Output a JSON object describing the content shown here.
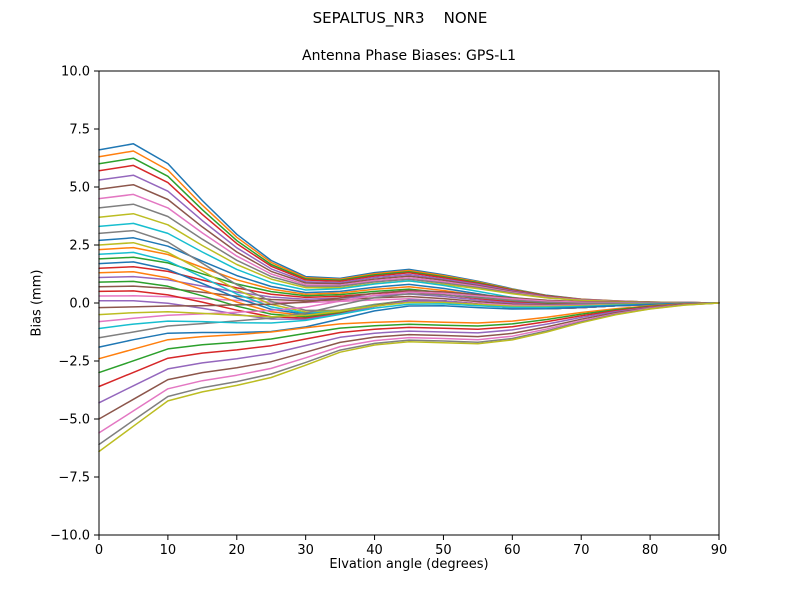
{
  "figure": {
    "suptitle": "SEPALTUS_NR3    NONE"
  },
  "chart_data": {
    "type": "line",
    "suptitle": "SEPALTUS_NR3    NONE",
    "title": "Antenna Phase Biases: GPS-L1",
    "xlabel": "Elvation angle (degrees)",
    "ylabel": "Bias (mm)",
    "xlim": [
      0,
      90
    ],
    "ylim": [
      -10,
      10
    ],
    "xticks": [
      0,
      10,
      20,
      30,
      40,
      50,
      60,
      70,
      80,
      90
    ],
    "yticks": [
      -10,
      -7.5,
      -5,
      -2.5,
      0,
      2.5,
      5,
      7.5,
      10
    ],
    "ytick_labels": [
      "−10.0",
      "−7.5",
      "−5.0",
      "−2.5",
      "0.0",
      "2.5",
      "5.0",
      "7.5",
      "10.0"
    ],
    "grid": false,
    "legend": "none",
    "line_colors": [
      "#1f77b4",
      "#ff7f0e",
      "#2ca02c",
      "#d62728",
      "#9467bd",
      "#8c564b",
      "#e377c2",
      "#7f7f7f",
      "#bcbd22",
      "#17becf"
    ],
    "x": [
      0,
      5,
      10,
      15,
      20,
      25,
      30,
      35,
      40,
      45,
      50,
      55,
      60,
      65,
      70,
      75,
      80,
      85,
      90
    ],
    "series": [
      [
        6.6,
        6.86,
        6.01,
        4.42,
        2.96,
        1.83,
        1.14,
        1.06,
        1.31,
        1.45,
        1.22,
        0.94,
        0.61,
        0.33,
        0.17,
        0.09,
        0.04,
        0.02,
        0.0
      ],
      [
        6.3,
        6.55,
        5.73,
        4.22,
        2.83,
        1.75,
        1.09,
        1.02,
        1.26,
        1.4,
        1.18,
        0.91,
        0.59,
        0.32,
        0.16,
        0.09,
        0.04,
        0.02,
        0.0
      ],
      [
        6.0,
        6.24,
        5.46,
        4.02,
        2.69,
        1.66,
        1.04,
        0.98,
        1.21,
        1.35,
        1.13,
        0.88,
        0.57,
        0.31,
        0.15,
        0.08,
        0.04,
        0.02,
        0.0
      ],
      [
        5.7,
        5.93,
        5.19,
        3.82,
        2.56,
        1.58,
        0.99,
        0.94,
        1.16,
        1.3,
        1.09,
        0.84,
        0.55,
        0.3,
        0.15,
        0.08,
        0.04,
        0.02,
        0.0
      ],
      [
        5.3,
        5.51,
        4.82,
        3.55,
        2.38,
        1.47,
        0.92,
        0.88,
        1.1,
        1.23,
        1.03,
        0.8,
        0.52,
        0.28,
        0.14,
        0.08,
        0.04,
        0.02,
        0.0
      ],
      [
        4.9,
        5.1,
        4.46,
        3.28,
        2.2,
        1.36,
        0.86,
        0.83,
        1.03,
        1.16,
        0.98,
        0.75,
        0.49,
        0.27,
        0.13,
        0.07,
        0.04,
        0.02,
        0.0
      ],
      [
        4.5,
        4.68,
        4.1,
        3.02,
        2.02,
        1.25,
        0.79,
        0.77,
        0.97,
        1.09,
        0.92,
        0.71,
        0.46,
        0.25,
        0.13,
        0.07,
        0.03,
        0.02,
        0.0
      ],
      [
        4.1,
        4.26,
        3.73,
        2.75,
        1.84,
        1.14,
        0.73,
        0.72,
        0.91,
        1.02,
        0.86,
        0.67,
        0.43,
        0.23,
        0.12,
        0.06,
        0.03,
        0.02,
        0.0
      ],
      [
        3.7,
        3.85,
        3.37,
        2.48,
        1.66,
        1.03,
        0.66,
        0.66,
        0.84,
        0.95,
        0.8,
        0.62,
        0.4,
        0.22,
        0.11,
        0.06,
        0.03,
        0.01,
        0.0
      ],
      [
        3.3,
        3.43,
        3.0,
        2.2,
        1.45,
        0.88,
        0.56,
        0.61,
        0.82,
        0.96,
        0.76,
        0.5,
        0.24,
        0.06,
        -0.01,
        -0.01,
        -0.01,
        0.0,
        0.0
      ],
      [
        2.7,
        2.81,
        2.45,
        1.8,
        1.18,
        0.71,
        0.45,
        0.5,
        0.68,
        0.8,
        0.63,
        0.4,
        0.17,
        0.02,
        -0.03,
        -0.02,
        -0.01,
        0.0,
        0.0
      ],
      [
        2.3,
        2.39,
        2.09,
        1.53,
        1.0,
        0.6,
        0.38,
        0.43,
        0.59,
        0.7,
        0.54,
        0.33,
        0.13,
        0.0,
        -0.04,
        -0.03,
        -0.02,
        -0.01,
        0.0
      ],
      [
        1.9,
        1.97,
        1.73,
        1.26,
        0.82,
        0.49,
        0.31,
        0.36,
        0.5,
        0.6,
        0.45,
        0.26,
        0.09,
        -0.02,
        -0.05,
        -0.03,
        -0.02,
        -0.01,
        0.0
      ],
      [
        1.5,
        1.56,
        1.36,
        0.99,
        0.65,
        0.38,
        0.24,
        0.29,
        0.41,
        0.49,
        0.36,
        0.19,
        0.04,
        -0.05,
        -0.06,
        -0.04,
        -0.02,
        -0.01,
        0.0
      ],
      [
        1.1,
        1.14,
        1.0,
        0.73,
        0.47,
        0.26,
        0.16,
        0.21,
        0.31,
        0.39,
        0.28,
        0.13,
        0.0,
        -0.07,
        -0.08,
        -0.05,
        -0.02,
        -0.01,
        0.0
      ],
      [
        0.7,
        0.73,
        0.63,
        0.46,
        0.29,
        0.15,
        0.09,
        0.14,
        0.22,
        0.28,
        0.19,
        0.06,
        -0.05,
        -0.1,
        -0.09,
        -0.05,
        -0.03,
        -0.01,
        0.0
      ],
      [
        0.3,
        0.31,
        0.27,
        0.19,
        0.11,
        0.04,
        0.02,
        0.07,
        0.13,
        0.18,
        0.1,
        -0.01,
        -0.09,
        -0.12,
        -0.1,
        -0.06,
        -0.03,
        -0.01,
        0.0
      ],
      [
        3.0,
        3.12,
        2.63,
        1.71,
        0.79,
        0.07,
        -0.32,
        -0.31,
        -0.06,
        0.12,
        0.09,
        -0.05,
        -0.21,
        -0.25,
        -0.2,
        -0.12,
        -0.07,
        -0.02,
        0.0
      ],
      [
        2.5,
        2.6,
        2.18,
        1.38,
        0.57,
        -0.06,
        -0.39,
        -0.34,
        -0.08,
        0.11,
        0.09,
        -0.05,
        -0.21,
        -0.25,
        -0.2,
        -0.12,
        -0.07,
        -0.02,
        0.0
      ],
      [
        2.1,
        2.18,
        1.81,
        1.11,
        0.39,
        -0.17,
        -0.44,
        -0.36,
        -0.09,
        0.11,
        0.09,
        -0.05,
        -0.21,
        -0.25,
        -0.2,
        -0.12,
        -0.07,
        -0.02,
        0.0
      ],
      [
        1.7,
        1.77,
        1.45,
        0.84,
        0.22,
        -0.27,
        -0.49,
        -0.39,
        -0.1,
        0.11,
        0.09,
        -0.05,
        -0.21,
        -0.25,
        -0.2,
        -0.12,
        -0.07,
        -0.02,
        0.0
      ],
      [
        1.3,
        1.35,
        1.08,
        0.57,
        0.04,
        -0.38,
        -0.54,
        -0.41,
        -0.11,
        0.1,
        0.09,
        -0.05,
        -0.21,
        -0.25,
        -0.2,
        -0.12,
        -0.07,
        -0.02,
        0.0
      ],
      [
        0.9,
        0.93,
        0.72,
        0.31,
        -0.14,
        -0.48,
        -0.6,
        -0.43,
        -0.13,
        0.1,
        0.09,
        -0.05,
        -0.21,
        -0.25,
        -0.2,
        -0.12,
        -0.07,
        -0.02,
        0.0
      ],
      [
        0.5,
        0.52,
        0.35,
        0.04,
        -0.31,
        -0.59,
        -0.65,
        -0.46,
        -0.14,
        0.09,
        0.09,
        -0.05,
        -0.21,
        -0.25,
        -0.2,
        -0.12,
        -0.07,
        -0.02,
        0.0
      ],
      [
        0.1,
        0.1,
        -0.01,
        -0.23,
        -0.49,
        -0.69,
        -0.7,
        -0.48,
        -0.15,
        0.09,
        0.09,
        -0.05,
        -0.21,
        -0.25,
        -0.2,
        -0.12,
        -0.07,
        -0.02,
        0.0
      ],
      [
        -0.2,
        -0.17,
        -0.13,
        -0.12,
        -0.08,
        -0.05,
        0.04,
        0.22,
        0.42,
        0.54,
        0.48,
        0.36,
        0.23,
        0.12,
        0.06,
        0.03,
        0.02,
        0.01,
        0.0
      ],
      [
        -0.8,
        -0.66,
        -0.53,
        -0.47,
        -0.4,
        -0.32,
        -0.18,
        0.08,
        0.33,
        0.47,
        0.42,
        0.3,
        0.18,
        0.08,
        0.03,
        0.01,
        0.01,
        0.0,
        0.0
      ],
      [
        -1.5,
        -1.25,
        -0.99,
        -0.89,
        -0.77,
        -0.65,
        -0.43,
        -0.09,
        0.23,
        0.4,
        0.35,
        0.23,
        0.11,
        0.03,
        -0.01,
        -0.01,
        0.0,
        0.0,
        0.0
      ],
      [
        -0.5,
        -0.42,
        -0.38,
        -0.45,
        -0.53,
        -0.59,
        -0.53,
        -0.35,
        -0.13,
        0.02,
        0.02,
        -0.06,
        -0.14,
        -0.15,
        -0.12,
        -0.07,
        -0.04,
        -0.01,
        0.0
      ],
      [
        -1.1,
        -0.91,
        -0.78,
        -0.8,
        -0.85,
        -0.86,
        -0.75,
        -0.49,
        -0.22,
        -0.05,
        -0.04,
        -0.12,
        -0.19,
        -0.19,
        -0.15,
        -0.09,
        -0.05,
        -0.02,
        0.0
      ],
      [
        -1.9,
        -1.58,
        -1.3,
        -1.27,
        -1.27,
        -1.23,
        -1.03,
        -0.69,
        -0.34,
        -0.13,
        -0.12,
        -0.2,
        -0.26,
        -0.25,
        -0.19,
        -0.12,
        -0.06,
        -0.02,
        0.0
      ],
      [
        -2.4,
        -1.99,
        -1.58,
        -1.45,
        -1.36,
        -1.25,
        -1.07,
        -0.9,
        -0.83,
        -0.79,
        -0.83,
        -0.86,
        -0.78,
        -0.61,
        -0.41,
        -0.25,
        -0.12,
        -0.04,
        0.0
      ],
      [
        -3.0,
        -2.49,
        -1.98,
        -1.8,
        -1.69,
        -1.55,
        -1.31,
        -1.08,
        -0.98,
        -0.92,
        -0.96,
        -0.99,
        -0.9,
        -0.71,
        -0.48,
        -0.29,
        -0.14,
        -0.05,
        0.0
      ],
      [
        -3.6,
        -2.99,
        -2.38,
        -2.16,
        -2.02,
        -1.84,
        -1.55,
        -1.27,
        -1.13,
        -1.05,
        -1.09,
        -1.13,
        -1.02,
        -0.8,
        -0.55,
        -0.33,
        -0.16,
        -0.05,
        0.0
      ],
      [
        -4.3,
        -3.57,
        -2.84,
        -2.58,
        -2.4,
        -2.18,
        -1.83,
        -1.48,
        -1.3,
        -1.21,
        -1.25,
        -1.29,
        -1.16,
        -0.91,
        -0.62,
        -0.37,
        -0.19,
        -0.06,
        0.0
      ],
      [
        -5.0,
        -4.15,
        -3.3,
        -3.0,
        -2.79,
        -2.53,
        -2.12,
        -1.7,
        -1.47,
        -1.36,
        -1.4,
        -1.45,
        -1.31,
        -1.03,
        -0.7,
        -0.42,
        -0.21,
        -0.07,
        0.0
      ],
      [
        -5.6,
        -4.65,
        -3.7,
        -3.35,
        -3.11,
        -2.82,
        -2.36,
        -1.88,
        -1.62,
        -1.49,
        -1.53,
        -1.58,
        -1.43,
        -1.12,
        -0.77,
        -0.46,
        -0.23,
        -0.08,
        0.0
      ],
      [
        -6.1,
        -5.06,
        -4.03,
        -3.65,
        -3.39,
        -3.06,
        -2.56,
        -2.03,
        -1.74,
        -1.6,
        -1.64,
        -1.69,
        -1.53,
        -1.2,
        -0.82,
        -0.49,
        -0.25,
        -0.08,
        0.0
      ],
      [
        -6.4,
        -5.31,
        -4.22,
        -3.83,
        -3.55,
        -3.21,
        -2.68,
        -2.12,
        -1.81,
        -1.67,
        -1.71,
        -1.76,
        -1.59,
        -1.25,
        -0.85,
        -0.51,
        -0.26,
        -0.09,
        0.0
      ]
    ]
  }
}
